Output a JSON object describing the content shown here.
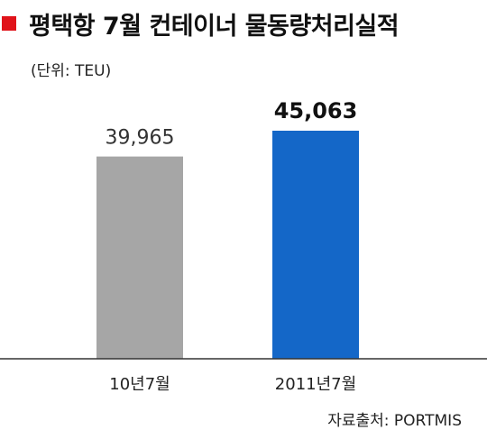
{
  "header": {
    "title": "평택항 7월 컨테이너 물동량처리실적"
  },
  "unit_label": "(단위: TEU)",
  "source_label": "자료출처: PORTMIS",
  "colors": {
    "marker": "#e0131a",
    "bar_prev": "#a6a6a6",
    "bar_current": "#1467c8",
    "axis": "#333333"
  },
  "chart_data": {
    "type": "bar",
    "title": "평택항 7월 컨테이너 물동량처리실적",
    "ylabel": "(단위: TEU)",
    "categories": [
      "10년7월",
      "2011년7월"
    ],
    "values": [
      39965,
      45063
    ],
    "value_labels": [
      "39,965",
      "45,063"
    ],
    "bar_colors": [
      "#a6a6a6",
      "#1467c8"
    ],
    "ylim": [
      0,
      45063
    ],
    "grid": false,
    "legend": "none"
  }
}
